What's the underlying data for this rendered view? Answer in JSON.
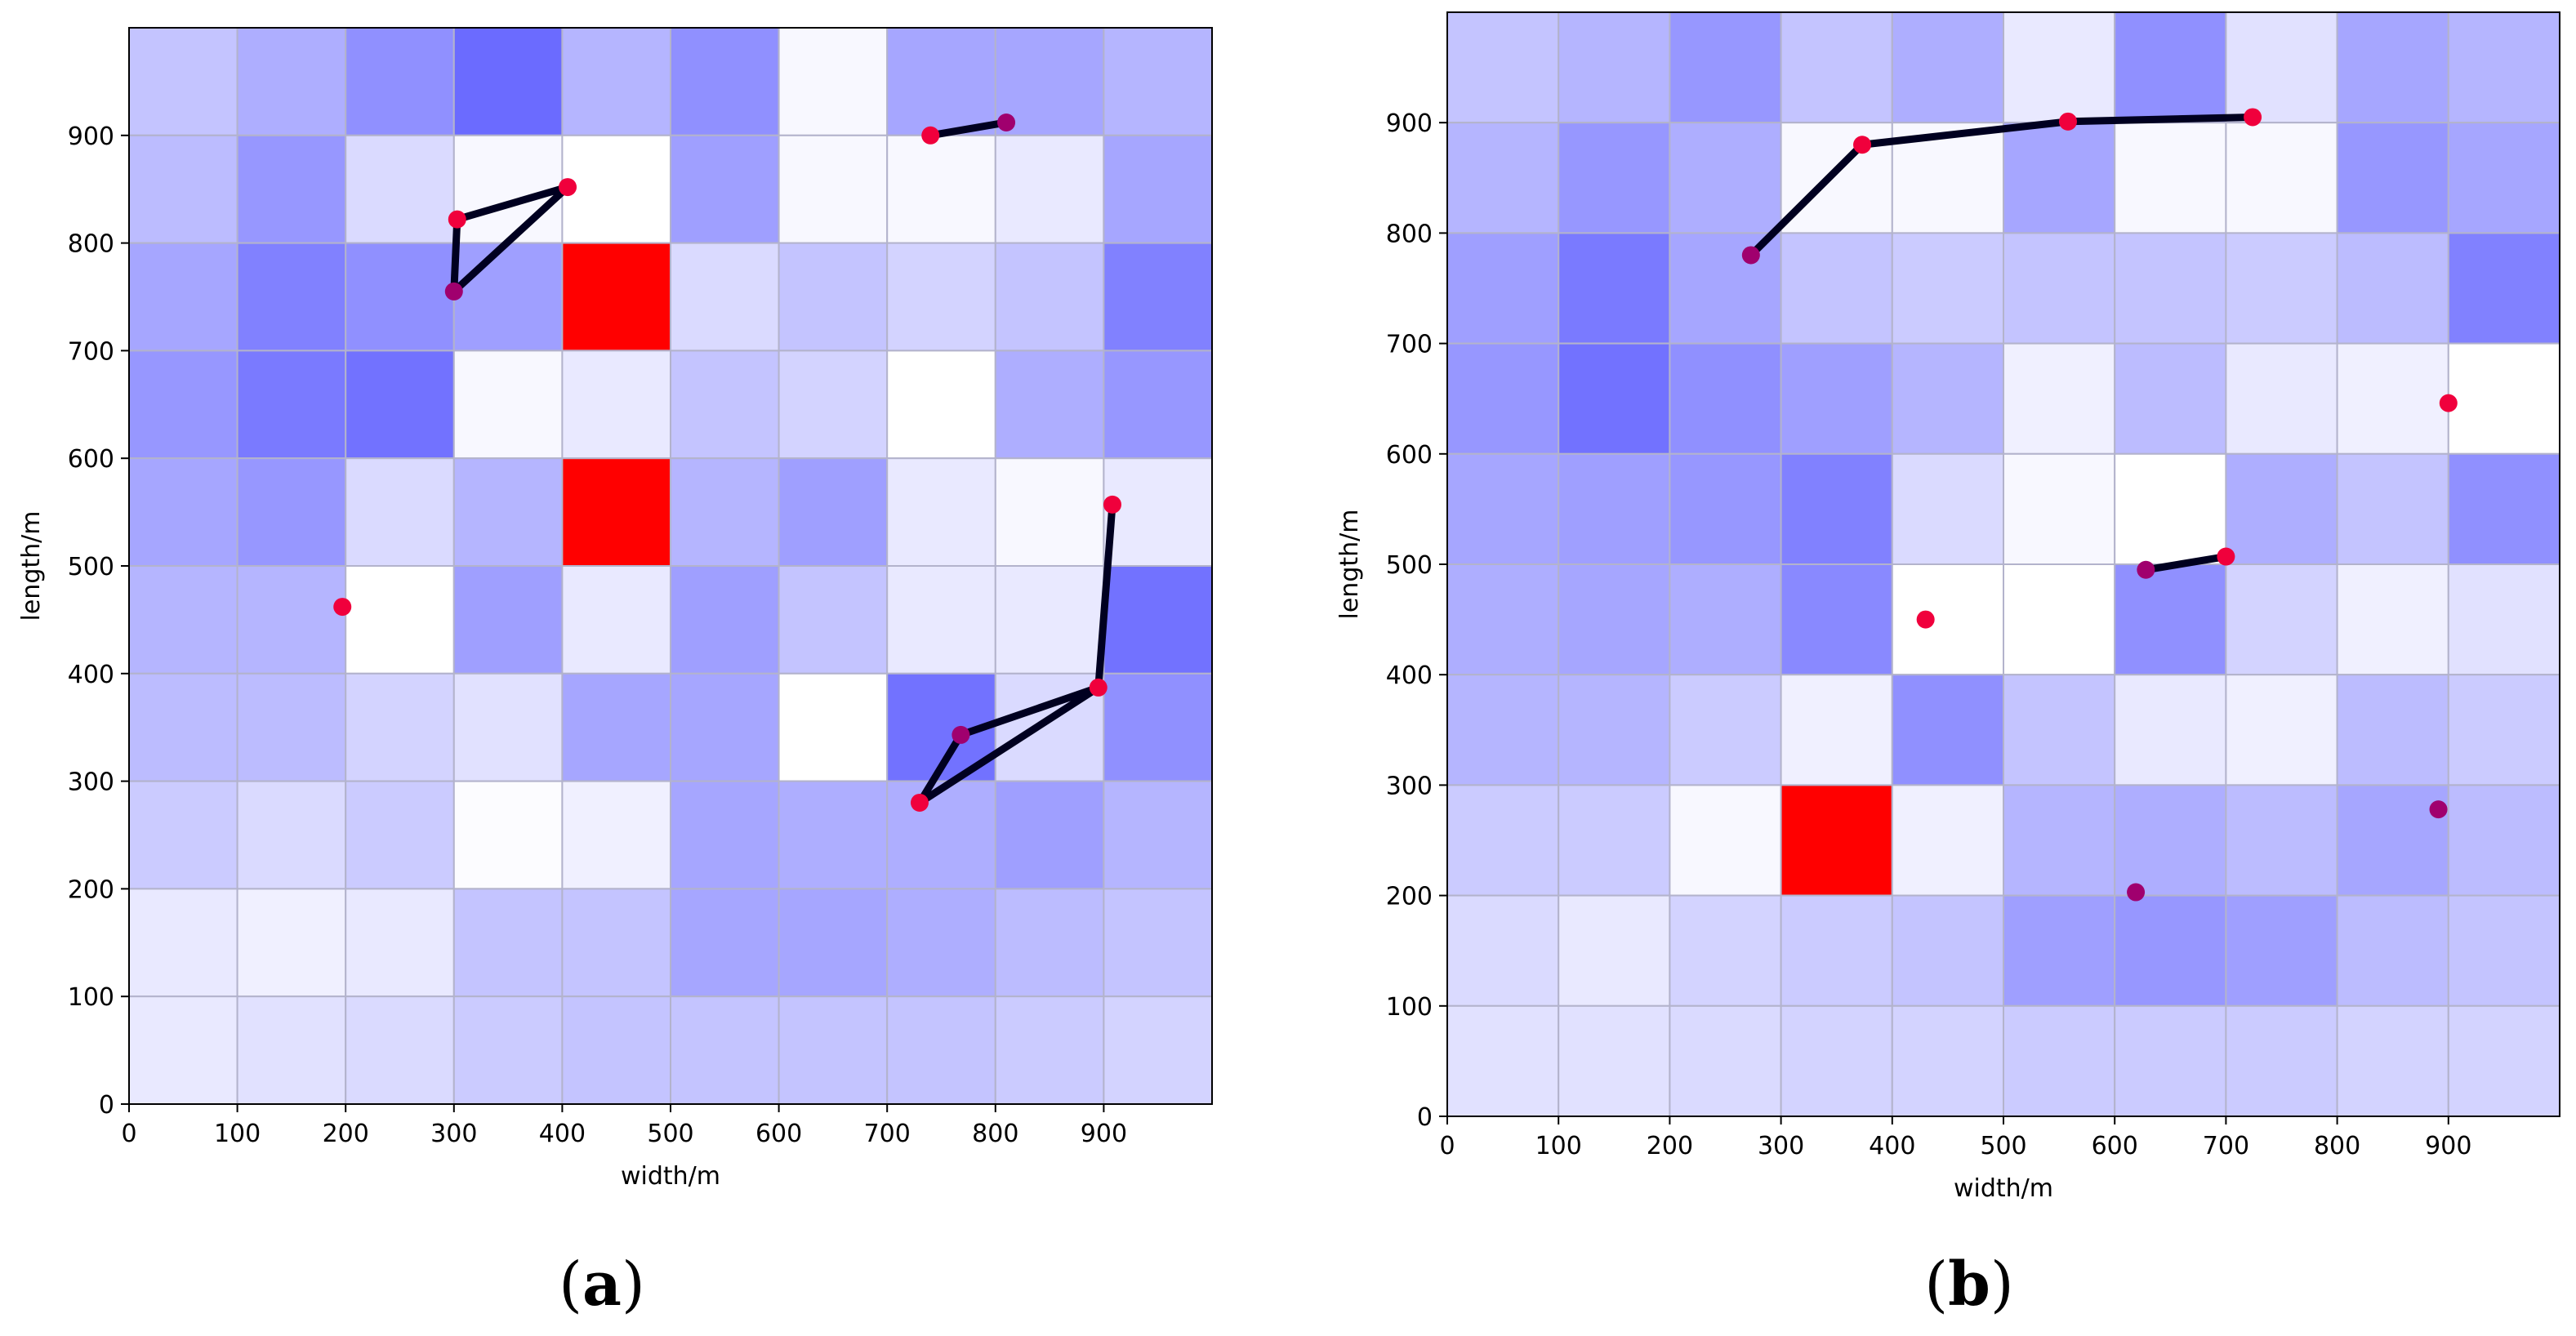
{
  "figure": {
    "colors": {
      "heat_base": "#6b6bff",
      "heat_low": "#ffffff",
      "hotspot": "#ff0000",
      "grid_line": "#b3b3cc",
      "path_line": "#000020",
      "node_fill": "#f0003c",
      "node_visited_fill": "#a0006e"
    }
  },
  "chart_data": [
    {
      "type": "heatmap",
      "panel": "a",
      "caption_open": "(",
      "caption_letter": "a",
      "caption_close": ")",
      "xlabel": "width/m",
      "ylabel": "length/m",
      "xlim": [
        0,
        1000
      ],
      "ylim": [
        0,
        1000
      ],
      "x_ticks": [
        0,
        100,
        200,
        300,
        400,
        500,
        600,
        700,
        800,
        900
      ],
      "y_ticks": [
        0,
        100,
        200,
        300,
        400,
        500,
        600,
        700,
        800,
        900
      ],
      "cell_size": 100,
      "intensity_rows_top_to_bottom": [
        [
          0.4,
          0.55,
          0.75,
          1.0,
          0.5,
          0.75,
          0.05,
          0.6,
          0.6,
          0.5
        ],
        [
          0.45,
          0.7,
          0.25,
          0.05,
          0.0,
          0.65,
          0.05,
          0.05,
          0.15,
          0.6
        ],
        [
          0.6,
          0.85,
          0.75,
          0.65,
          "hot",
          0.25,
          0.4,
          0.3,
          0.4,
          0.85
        ],
        [
          0.7,
          0.9,
          0.95,
          0.05,
          0.15,
          0.4,
          0.3,
          0.0,
          0.55,
          0.7
        ],
        [
          0.6,
          0.7,
          0.25,
          0.5,
          "hot",
          0.5,
          0.65,
          0.15,
          0.05,
          0.15
        ],
        [
          0.5,
          0.5,
          0.0,
          0.65,
          0.15,
          0.65,
          0.4,
          0.15,
          0.15,
          0.95
        ],
        [
          0.45,
          0.45,
          0.3,
          0.2,
          0.6,
          0.6,
          0.0,
          0.95,
          0.25,
          0.75
        ],
        [
          0.35,
          0.25,
          0.35,
          0.02,
          0.1,
          0.6,
          0.55,
          0.55,
          0.65,
          0.5
        ],
        [
          0.15,
          0.1,
          0.15,
          0.4,
          0.4,
          0.6,
          0.6,
          0.55,
          0.45,
          0.4
        ],
        [
          0.15,
          0.2,
          0.25,
          0.35,
          0.4,
          0.4,
          0.4,
          0.4,
          0.35,
          0.3
        ]
      ],
      "paths": [
        [
          [
            740,
            900
          ],
          [
            810,
            912
          ]
        ],
        [
          [
            300,
            755
          ],
          [
            303,
            822
          ],
          [
            405,
            852
          ],
          [
            300,
            755
          ]
        ],
        [
          [
            730,
            280
          ],
          [
            768,
            343
          ],
          [
            895,
            387
          ],
          [
            730,
            280
          ]
        ],
        [
          [
            895,
            387
          ],
          [
            908,
            557
          ]
        ]
      ],
      "points": [
        {
          "x": 197,
          "y": 462,
          "visited": false
        },
        {
          "x": 740,
          "y": 900,
          "visited": false
        },
        {
          "x": 810,
          "y": 912,
          "visited": true
        },
        {
          "x": 303,
          "y": 822,
          "visited": false
        },
        {
          "x": 405,
          "y": 852,
          "visited": false
        },
        {
          "x": 300,
          "y": 755,
          "visited": true
        },
        {
          "x": 908,
          "y": 557,
          "visited": false
        },
        {
          "x": 895,
          "y": 387,
          "visited": false
        },
        {
          "x": 768,
          "y": 343,
          "visited": true
        },
        {
          "x": 730,
          "y": 280,
          "visited": false
        }
      ]
    },
    {
      "type": "heatmap",
      "panel": "b",
      "caption_open": "(",
      "caption_letter": "b",
      "caption_close": ")",
      "xlabel": "width/m",
      "ylabel": "length/m",
      "xlim": [
        0,
        1000
      ],
      "ylim": [
        0,
        1000
      ],
      "x_ticks": [
        0,
        100,
        200,
        300,
        400,
        500,
        600,
        700,
        800,
        900
      ],
      "y_ticks": [
        0,
        100,
        200,
        300,
        400,
        500,
        600,
        700,
        800,
        900
      ],
      "cell_size": 100,
      "intensity_rows_top_to_bottom": [
        [
          0.4,
          0.5,
          0.7,
          0.4,
          0.55,
          0.15,
          0.75,
          0.2,
          0.6,
          0.5
        ],
        [
          0.5,
          0.7,
          0.55,
          0.05,
          0.05,
          0.6,
          0.05,
          0.05,
          0.7,
          0.6
        ],
        [
          0.65,
          0.9,
          0.6,
          0.4,
          0.35,
          0.4,
          0.4,
          0.35,
          0.45,
          0.85
        ],
        [
          0.7,
          0.95,
          0.75,
          0.65,
          0.5,
          0.1,
          0.45,
          0.15,
          0.1,
          0.0
        ],
        [
          0.6,
          0.65,
          0.7,
          0.85,
          0.25,
          0.05,
          0.0,
          0.55,
          0.4,
          0.75
        ],
        [
          0.55,
          0.6,
          0.55,
          0.8,
          0.0,
          0.0,
          0.75,
          0.3,
          0.1,
          0.2
        ],
        [
          0.5,
          0.5,
          0.35,
          0.1,
          0.75,
          0.4,
          0.15,
          0.1,
          0.45,
          0.35
        ],
        [
          0.35,
          0.35,
          0.05,
          "hot",
          0.1,
          0.5,
          0.55,
          0.45,
          0.6,
          0.45
        ],
        [
          0.25,
          0.15,
          0.3,
          0.35,
          0.4,
          0.65,
          0.7,
          0.65,
          0.45,
          0.4
        ],
        [
          0.2,
          0.2,
          0.25,
          0.3,
          0.3,
          0.35,
          0.35,
          0.35,
          0.3,
          0.3
        ]
      ],
      "paths": [
        [
          [
            273,
            780
          ],
          [
            373,
            880
          ],
          [
            558,
            901
          ],
          [
            724,
            905
          ]
        ],
        [
          [
            628,
            495
          ],
          [
            700,
            507
          ]
        ]
      ],
      "points": [
        {
          "x": 273,
          "y": 780,
          "visited": true
        },
        {
          "x": 373,
          "y": 880,
          "visited": false
        },
        {
          "x": 558,
          "y": 901,
          "visited": false
        },
        {
          "x": 724,
          "y": 905,
          "visited": false
        },
        {
          "x": 900,
          "y": 646,
          "visited": false
        },
        {
          "x": 628,
          "y": 495,
          "visited": true
        },
        {
          "x": 700,
          "y": 507,
          "visited": false
        },
        {
          "x": 430,
          "y": 450,
          "visited": false
        },
        {
          "x": 891,
          "y": 278,
          "visited": true
        },
        {
          "x": 619,
          "y": 203,
          "visited": true
        }
      ]
    }
  ]
}
